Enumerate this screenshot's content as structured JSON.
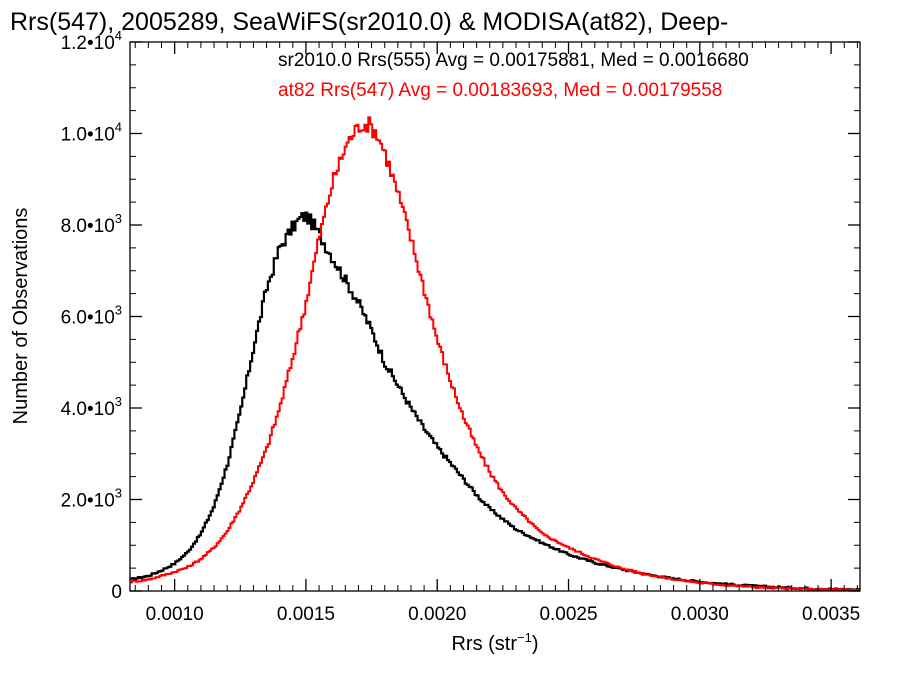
{
  "chart_data": {
    "type": "line",
    "style": "histogram-step",
    "title": "Rrs(547), 2005289, SeaWiFS(sr2010.0) & MODISA(at82), Deep-",
    "xlabel": {
      "base": "Rrs (str",
      "sup": "−1",
      "tail": ")"
    },
    "ylabel": "Number of Observations",
    "xlim": [
      0.00083,
      0.00361
    ],
    "ylim": [
      0,
      12000
    ],
    "x_ticks": [
      {
        "value": 0.001,
        "label": "0.0010"
      },
      {
        "value": 0.0015,
        "label": "0.0015"
      },
      {
        "value": 0.002,
        "label": "0.0020"
      },
      {
        "value": 0.0025,
        "label": "0.0025"
      },
      {
        "value": 0.003,
        "label": "0.0030"
      },
      {
        "value": 0.0035,
        "label": "0.0035"
      }
    ],
    "y_ticks": [
      {
        "value": 0,
        "mant": "0",
        "exp": ""
      },
      {
        "value": 2000,
        "mant": "2.0•10",
        "exp": "3"
      },
      {
        "value": 4000,
        "mant": "4.0•10",
        "exp": "3"
      },
      {
        "value": 6000,
        "mant": "6.0•10",
        "exp": "3"
      },
      {
        "value": 8000,
        "mant": "8.0•10",
        "exp": "3"
      },
      {
        "value": 10000,
        "mant": "1.0•10",
        "exp": "4"
      },
      {
        "value": 12000,
        "mant": "1.2•10",
        "exp": "4"
      }
    ],
    "grid": false,
    "legend_position": "top-right",
    "series": [
      {
        "name": "sr2010.0 Rrs(555) Avg = 0.00175881, Med = 0.0016680",
        "color": "#000000",
        "x": [
          0.00083,
          0.0009,
          0.00095,
          0.001,
          0.00105,
          0.0011,
          0.00115,
          0.0012,
          0.00125,
          0.0013,
          0.00135,
          0.0014,
          0.00145,
          0.00148,
          0.0015,
          0.00153,
          0.00156,
          0.0016,
          0.00165,
          0.0017,
          0.00175,
          0.0018,
          0.00185,
          0.0019,
          0.00195,
          0.002,
          0.00205,
          0.0021,
          0.00215,
          0.0022,
          0.0023,
          0.0024,
          0.0025,
          0.0026,
          0.0027,
          0.0028,
          0.0029,
          0.003,
          0.0031,
          0.0032,
          0.0033,
          0.0034,
          0.0035,
          0.00361
        ],
        "y": [
          250,
          330,
          450,
          600,
          850,
          1250,
          1850,
          2750,
          3900,
          5300,
          6600,
          7500,
          7950,
          8150,
          8200,
          8000,
          7700,
          7300,
          6800,
          6300,
          5700,
          5000,
          4500,
          4000,
          3550,
          3150,
          2800,
          2450,
          2100,
          1800,
          1350,
          1050,
          800,
          620,
          480,
          360,
          270,
          200,
          150,
          110,
          80,
          60,
          40,
          30
        ]
      },
      {
        "name": "at82 Rrs(547) Avg = 0.00183693, Med = 0.00179558",
        "color": "#ff0000",
        "x": [
          0.00083,
          0.0009,
          0.00095,
          0.001,
          0.00105,
          0.0011,
          0.00115,
          0.0012,
          0.00125,
          0.0013,
          0.00135,
          0.0014,
          0.00145,
          0.0015,
          0.00155,
          0.0016,
          0.00165,
          0.00168,
          0.00171,
          0.00174,
          0.00177,
          0.0018,
          0.00185,
          0.0019,
          0.00195,
          0.002,
          0.00205,
          0.0021,
          0.00215,
          0.0022,
          0.00225,
          0.0023,
          0.0024,
          0.0025,
          0.0026,
          0.0027,
          0.0028,
          0.0029,
          0.003,
          0.0031,
          0.0032,
          0.0033,
          0.0034,
          0.0035,
          0.00361
        ],
        "y": [
          200,
          250,
          330,
          420,
          520,
          700,
          950,
          1300,
          1800,
          2400,
          3100,
          4000,
          5100,
          6300,
          7700,
          8900,
          9700,
          10000,
          10200,
          10200,
          10000,
          9600,
          8700,
          7700,
          6600,
          5500,
          4600,
          3800,
          3150,
          2600,
          2150,
          1800,
          1250,
          950,
          700,
          500,
          360,
          260,
          180,
          130,
          90,
          60,
          40,
          30,
          20
        ]
      }
    ]
  }
}
